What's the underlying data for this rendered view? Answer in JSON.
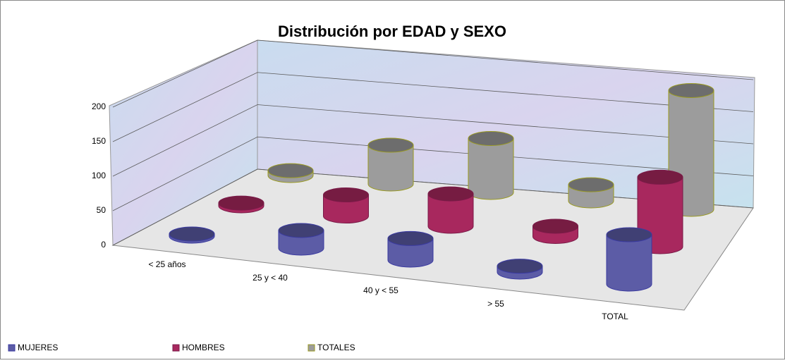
{
  "chart_data": {
    "type": "cylinder3d",
    "title": "Distribución por EDAD y SEXO",
    "categories": [
      "< 25 años",
      "25 y < 40",
      "40 y < 55",
      "> 55",
      "TOTAL"
    ],
    "series": [
      {
        "name": "MUJERES",
        "color": "#5c5ca6",
        "values": [
          3,
          25,
          30,
          8,
          66
        ]
      },
      {
        "name": "HOMBRES",
        "color": "#a8285e",
        "values": [
          4,
          30,
          45,
          14,
          93
        ]
      },
      {
        "name": "TOTALES",
        "color": "#9c9c9c",
        "values": [
          7,
          55,
          75,
          22,
          159
        ]
      }
    ],
    "ylim": [
      0,
      200
    ],
    "yticks": [
      0,
      50,
      100,
      150,
      200
    ],
    "grid": true,
    "legend": "bottom"
  }
}
